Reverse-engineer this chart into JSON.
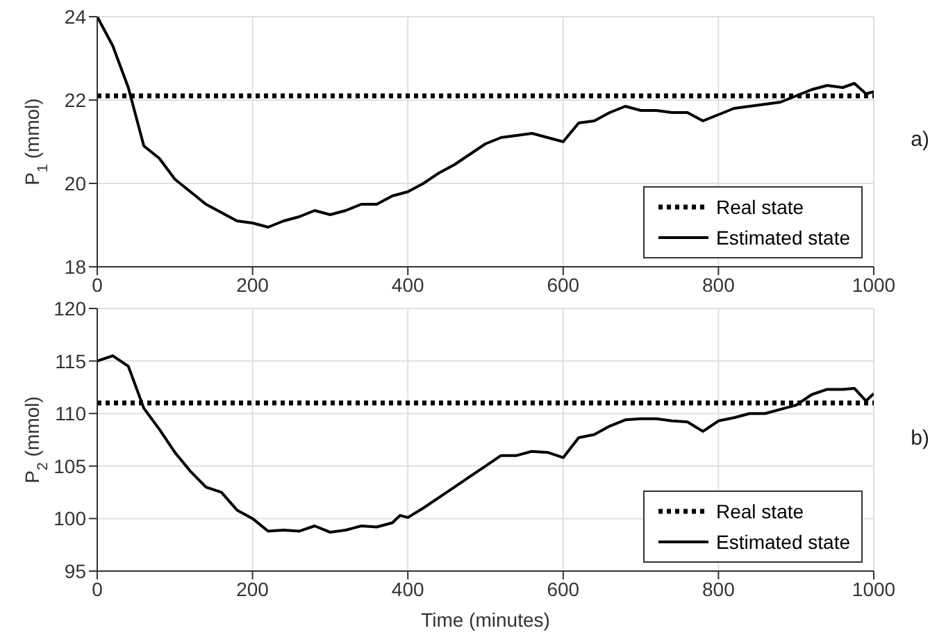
{
  "chart_data": [
    {
      "type": "line",
      "ylabel": "P$_{1}$ (mmol)",
      "xlim": [
        0,
        1000
      ],
      "xticks": [
        0,
        200,
        400,
        600,
        800,
        1000
      ],
      "ylim": [
        18,
        24
      ],
      "yticks": [
        18,
        20,
        22,
        24
      ],
      "grid": true,
      "legend": "bottom right",
      "annotations": [
        "a)"
      ],
      "series": [
        {
          "name": "Real state",
          "color": "#000000",
          "line_style": "dotted",
          "x": [
            0,
            1000
          ],
          "values": [
            22.1,
            22.1
          ]
        },
        {
          "name": "Estimated state",
          "color": "#000000",
          "line_style": "solid",
          "x": [
            0,
            20,
            40,
            50,
            60,
            80,
            100,
            120,
            140,
            160,
            180,
            200,
            220,
            240,
            260,
            280,
            300,
            320,
            340,
            360,
            380,
            400,
            420,
            440,
            460,
            480,
            500,
            520,
            540,
            560,
            580,
            600,
            620,
            640,
            660,
            680,
            700,
            720,
            740,
            760,
            780,
            800,
            820,
            840,
            860,
            880,
            900,
            920,
            940,
            960,
            975,
            990,
            1000
          ],
          "values": [
            24,
            23.3,
            22.3,
            21.6,
            20.9,
            20.6,
            20.1,
            19.8,
            19.5,
            19.3,
            19.1,
            19.05,
            18.95,
            19.1,
            19.2,
            19.35,
            19.25,
            19.35,
            19.5,
            19.5,
            19.7,
            19.8,
            20,
            20.25,
            20.45,
            20.7,
            20.95,
            21.1,
            21.15,
            21.2,
            21.1,
            21,
            21.45,
            21.5,
            21.7,
            21.85,
            21.75,
            21.75,
            21.7,
            21.7,
            21.5,
            21.65,
            21.8,
            21.85,
            21.9,
            21.95,
            22.1,
            22.25,
            22.35,
            22.3,
            22.4,
            22.15,
            22.2
          ]
        }
      ]
    },
    {
      "type": "line",
      "ylabel": "P$_{2}$ (mmol)",
      "xlabel": "Time (minutes)",
      "xlim": [
        0,
        1000
      ],
      "xticks": [
        0,
        200,
        400,
        600,
        800,
        1000
      ],
      "ylim": [
        95,
        120
      ],
      "yticks": [
        95,
        100,
        105,
        110,
        115,
        120
      ],
      "grid": true,
      "legend": "bottom right",
      "annotations": [
        "b)"
      ],
      "series": [
        {
          "name": "Real state",
          "color": "#000000",
          "line_style": "dotted",
          "x": [
            0,
            1000
          ],
          "values": [
            111,
            111
          ]
        },
        {
          "name": "Estimated state",
          "color": "#000000",
          "line_style": "solid",
          "x": [
            0,
            20,
            40,
            50,
            60,
            80,
            100,
            120,
            140,
            160,
            180,
            200,
            220,
            240,
            260,
            280,
            300,
            320,
            340,
            360,
            380,
            390,
            400,
            420,
            440,
            460,
            480,
            500,
            520,
            540,
            560,
            580,
            600,
            620,
            640,
            660,
            680,
            700,
            720,
            740,
            760,
            780,
            800,
            820,
            840,
            860,
            880,
            900,
            920,
            940,
            960,
            975,
            990,
            1000
          ],
          "values": [
            115,
            115.5,
            114.5,
            112.5,
            110.5,
            108.5,
            106.3,
            104.5,
            103,
            102.5,
            100.8,
            100,
            98.8,
            98.9,
            98.8,
            99.3,
            98.7,
            98.9,
            99.3,
            99.2,
            99.6,
            100.3,
            100.1,
            101,
            102,
            103,
            104,
            105,
            106,
            106,
            106.4,
            106.3,
            105.8,
            107.7,
            108,
            108.8,
            109.4,
            109.5,
            109.5,
            109.3,
            109.2,
            108.3,
            109.3,
            109.6,
            110,
            110,
            110.4,
            110.8,
            111.8,
            112.3,
            112.3,
            112.4,
            111.2,
            111.9
          ]
        }
      ]
    }
  ]
}
